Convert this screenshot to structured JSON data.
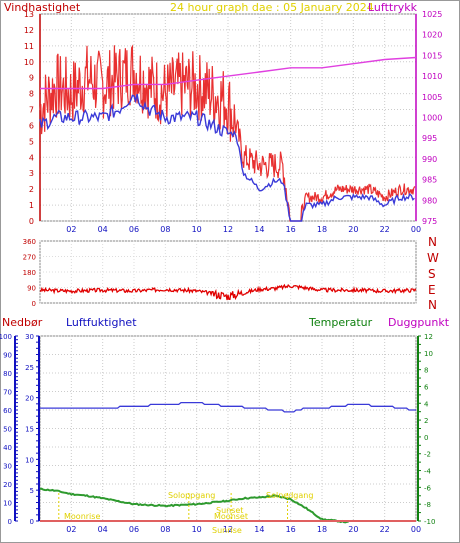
{
  "header": {
    "left_label": "Vindhastighet",
    "title": "24 hour graph dae : 05 January 2024",
    "right_label": "Lufttrykk"
  },
  "middle": {
    "labels": [
      "N",
      "W",
      "S",
      "E",
      "N"
    ]
  },
  "bottom": {
    "rain_label": "Nedbør",
    "humidity_label": "Luftfuktighet",
    "temperature_label": "Temperatur",
    "dewpoint_label": "Duggpunkt",
    "annotations": [
      "Moonrise",
      "Moonset",
      "Sunrise",
      "Sunset",
      "Soloppgang",
      "Solnedgang"
    ]
  },
  "colors": {
    "wind": "#e83030",
    "gust_avg": "#3a3ad8",
    "pressure": "#e040e0",
    "direction": "#e00000",
    "humidity": "#3a3ad8",
    "temperature": "#2e9a2e",
    "rain": "#e06060",
    "left_axis": "#c00000",
    "pressure_axis": "#c000c0",
    "humidity_axis": "#1010c0",
    "temp_axis": "#108010",
    "annotation": "#e0d000"
  },
  "chart_data": [
    {
      "type": "line",
      "xlabel": "",
      "ylabel": "",
      "xlim": [
        0,
        24
      ],
      "xticks": [
        "02",
        "04",
        "06",
        "08",
        "10",
        "12",
        "14",
        "16",
        "18",
        "20",
        "22",
        "00"
      ],
      "ylim": [
        0,
        13
      ],
      "yticks": [
        "0",
        "1",
        "2",
        "3",
        "4",
        "5",
        "6",
        "7",
        "8",
        "9",
        "10",
        "11",
        "12",
        "13"
      ],
      "y2lim": [
        975,
        1025
      ],
      "y2ticks": [
        "975",
        "980",
        "985",
        "990",
        "995",
        "1000",
        "1005",
        "1010",
        "1015",
        "1020",
        "1025"
      ],
      "series": [
        {
          "name": "Vindhastighet",
          "x": [
            0,
            1,
            2,
            3,
            4,
            5,
            6,
            7,
            8,
            9,
            10,
            11,
            12,
            12.5,
            13,
            14,
            15,
            15.5,
            16,
            16.5,
            17,
            18,
            19,
            20,
            21,
            22,
            23,
            24
          ],
          "y": [
            7,
            8.5,
            8,
            9,
            8.5,
            9,
            9.5,
            8.5,
            8,
            8.5,
            8.5,
            8,
            7.5,
            6,
            4,
            3.5,
            3.5,
            3.5,
            0,
            0,
            1.5,
            1.5,
            2,
            2,
            2,
            1.5,
            2,
            2
          ]
        },
        {
          "x": [
            0,
            1,
            2,
            3,
            4,
            5,
            6,
            7,
            8,
            9,
            10,
            11,
            12,
            12.5,
            13,
            14,
            15,
            15.5,
            16,
            16.5,
            17,
            18,
            19,
            20,
            21,
            22,
            23,
            24
          ],
          "y": [
            6,
            6.5,
            6.5,
            6.5,
            6.5,
            7,
            8,
            7,
            6.5,
            6.5,
            6.5,
            6,
            5.5,
            5.5,
            3,
            2,
            2.5,
            2.5,
            0,
            0,
            1,
            1,
            1.5,
            1.5,
            1.5,
            1,
            1.5,
            1.5
          ]
        },
        {
          "name": "Lufttrykk",
          "x": [
            0,
            2,
            4,
            6,
            8,
            10,
            12,
            14,
            16,
            18,
            20,
            22,
            24
          ],
          "y": [
            1007,
            1007,
            1007,
            1008,
            1008,
            1009,
            1010,
            1011,
            1012,
            1012,
            1013,
            1014,
            1014.5
          ]
        }
      ]
    },
    {
      "type": "line",
      "xlim": [
        0,
        24
      ],
      "ylim": [
        0,
        360
      ],
      "yticks": [
        "0",
        "90",
        "180",
        "270",
        "360"
      ],
      "series": [
        {
          "x": [
            0,
            2,
            4,
            6,
            8,
            10,
            11,
            12,
            13,
            14,
            15,
            16,
            18,
            20,
            22,
            24
          ],
          "y": [
            75,
            70,
            75,
            70,
            80,
            70,
            55,
            40,
            60,
            80,
            85,
            100,
            75,
            75,
            70,
            75
          ]
        }
      ]
    },
    {
      "type": "line",
      "xlim": [
        0,
        24
      ],
      "xticks": [
        "02",
        "04",
        "06",
        "08",
        "10",
        "12",
        "14",
        "16",
        "18",
        "20",
        "22",
        "00"
      ],
      "ylim": [
        0,
        100
      ],
      "yticks": [
        "0",
        "10",
        "20",
        "30",
        "40",
        "50",
        "60",
        "70",
        "80",
        "90",
        "100"
      ],
      "y1ticks": [
        "0",
        "5",
        "10",
        "15",
        "20",
        "25",
        "30"
      ],
      "y3lim": [
        -10,
        12
      ],
      "y3ticks": [
        "-10",
        "-8",
        "-6",
        "-4",
        "-2",
        "0",
        "2",
        "4",
        "6",
        "8",
        "10",
        "12"
      ],
      "series": [
        {
          "name": "Luftfuktighet",
          "x": [
            0,
            2,
            4,
            6,
            8,
            10,
            12,
            14,
            16,
            17,
            18,
            20,
            22,
            24
          ],
          "y": [
            61,
            61,
            61,
            62,
            63,
            64,
            62,
            61,
            59,
            61,
            61,
            63,
            62,
            60
          ]
        },
        {
          "name": "Temperatur",
          "x": [
            0,
            1,
            2,
            3,
            4,
            6,
            8,
            10,
            12,
            13,
            14,
            15,
            16,
            17,
            18,
            19,
            19.8
          ],
          "y": [
            -6.2,
            -6.4,
            -6.8,
            -7,
            -7.3,
            -8,
            -8.2,
            -8,
            -7.6,
            -7.3,
            -7.2,
            -7,
            -7.4,
            -8.5,
            -9.8,
            -10,
            -10.2
          ]
        },
        {
          "name": "Nedbør",
          "x": [
            0,
            24
          ],
          "y": [
            0,
            0
          ]
        }
      ]
    }
  ]
}
